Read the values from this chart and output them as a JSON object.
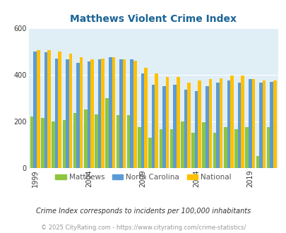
{
  "title": "Matthews Violent Crime Index",
  "years": [
    1999,
    2000,
    2001,
    2002,
    2003,
    2004,
    2005,
    2006,
    2007,
    2008,
    2009,
    2010,
    2011,
    2012,
    2013,
    2014,
    2015,
    2016,
    2017,
    2018,
    2019,
    2020,
    2021
  ],
  "matthews": [
    220,
    215,
    200,
    205,
    235,
    250,
    230,
    300,
    225,
    225,
    175,
    130,
    165,
    165,
    200,
    150,
    195,
    150,
    175,
    165,
    175,
    50,
    175
  ],
  "nc": [
    500,
    495,
    470,
    465,
    450,
    455,
    465,
    475,
    465,
    465,
    405,
    355,
    350,
    355,
    335,
    330,
    350,
    365,
    375,
    365,
    380,
    365,
    370
  ],
  "national": [
    505,
    505,
    500,
    490,
    475,
    465,
    470,
    475,
    465,
    460,
    430,
    405,
    390,
    390,
    365,
    375,
    380,
    385,
    395,
    395,
    380,
    375,
    375
  ],
  "matthews_color": "#8dc63f",
  "nc_color": "#5b9bd5",
  "national_color": "#ffc000",
  "plot_bg": "#e0eef6",
  "ylim": [
    0,
    600
  ],
  "yticks": [
    0,
    200,
    400,
    600
  ],
  "xlabel_ticks": [
    1999,
    2004,
    2009,
    2014,
    2019
  ],
  "legend_labels": [
    "Matthews",
    "North Carolina",
    "National"
  ],
  "subtitle": "Crime Index corresponds to incidents per 100,000 inhabitants",
  "footnote": "© 2025 CityRating.com - https://www.cityrating.com/crime-statistics/",
  "title_color": "#1a6496",
  "subtitle_color": "#333333",
  "footnote_color": "#999999"
}
